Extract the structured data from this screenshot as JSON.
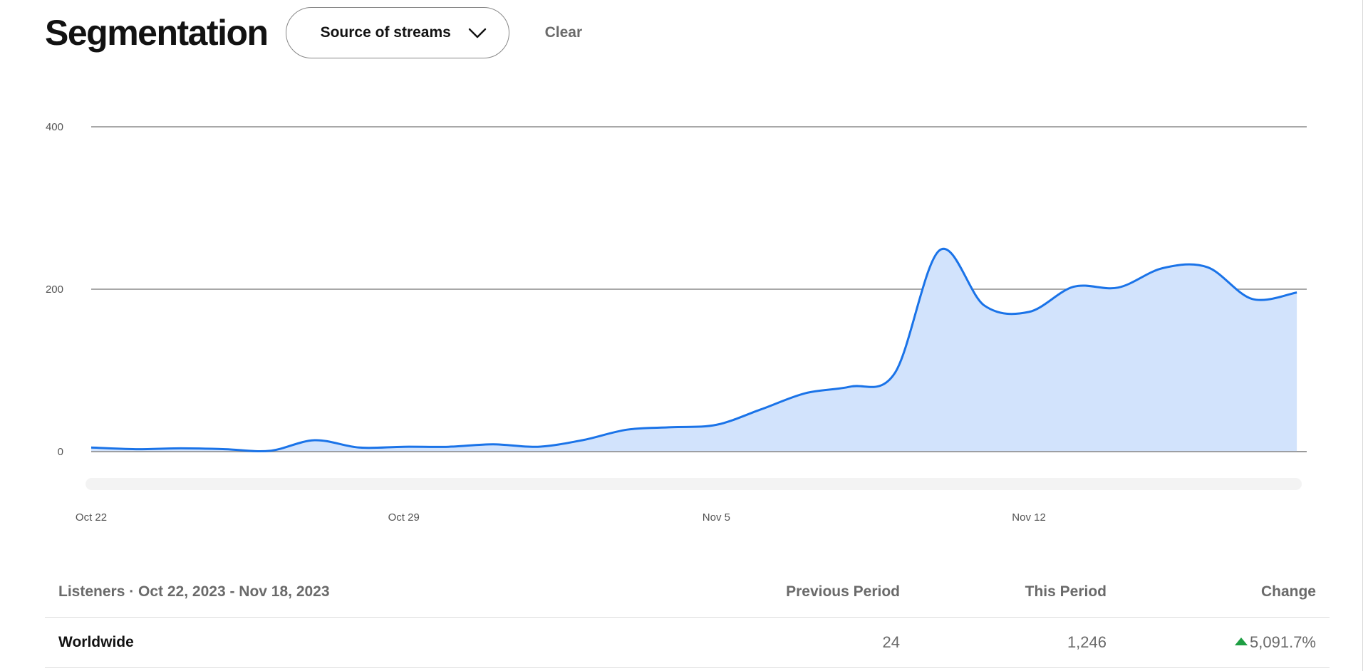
{
  "header": {
    "title": "Segmentation",
    "dropdown_label": "Source of streams",
    "clear_label": "Clear"
  },
  "chart_data": {
    "type": "area",
    "title": "",
    "xlabel": "",
    "ylabel": "",
    "x_tick_labels": [
      "Oct 22",
      "Oct 29",
      "Nov 5",
      "Nov 12"
    ],
    "y_tick_labels": [
      "400",
      "200",
      "0"
    ],
    "ylim": [
      0,
      400
    ],
    "grid": true,
    "accent_color": "#1a73e8",
    "fill_color": "#d2e3fc",
    "x": [
      "Oct 22",
      "Oct 23",
      "Oct 24",
      "Oct 25",
      "Oct 26",
      "Oct 27",
      "Oct 28",
      "Oct 29",
      "Oct 30",
      "Oct 31",
      "Nov 1",
      "Nov 2",
      "Nov 3",
      "Nov 4",
      "Nov 5",
      "Nov 6",
      "Nov 7",
      "Nov 8",
      "Nov 9",
      "Nov 10",
      "Nov 11",
      "Nov 12",
      "Nov 13",
      "Nov 14",
      "Nov 15",
      "Nov 16",
      "Nov 17",
      "Nov 18"
    ],
    "series": [
      {
        "values": [
          5,
          3,
          4,
          3,
          1,
          14,
          5,
          6,
          6,
          9,
          6,
          14,
          27,
          30,
          33,
          52,
          72,
          80,
          97,
          248,
          180,
          172,
          203,
          202,
          226,
          227,
          188,
          196
        ]
      }
    ]
  },
  "table": {
    "columns": [
      "Listeners · Oct 22, 2023 - Nov 18, 2023",
      "Previous Period",
      "This Period",
      "Change"
    ],
    "rows": [
      {
        "region": "Worldwide",
        "previous": "24",
        "current": "1,246",
        "change": "5,091.7%",
        "trend": "up"
      }
    ]
  }
}
